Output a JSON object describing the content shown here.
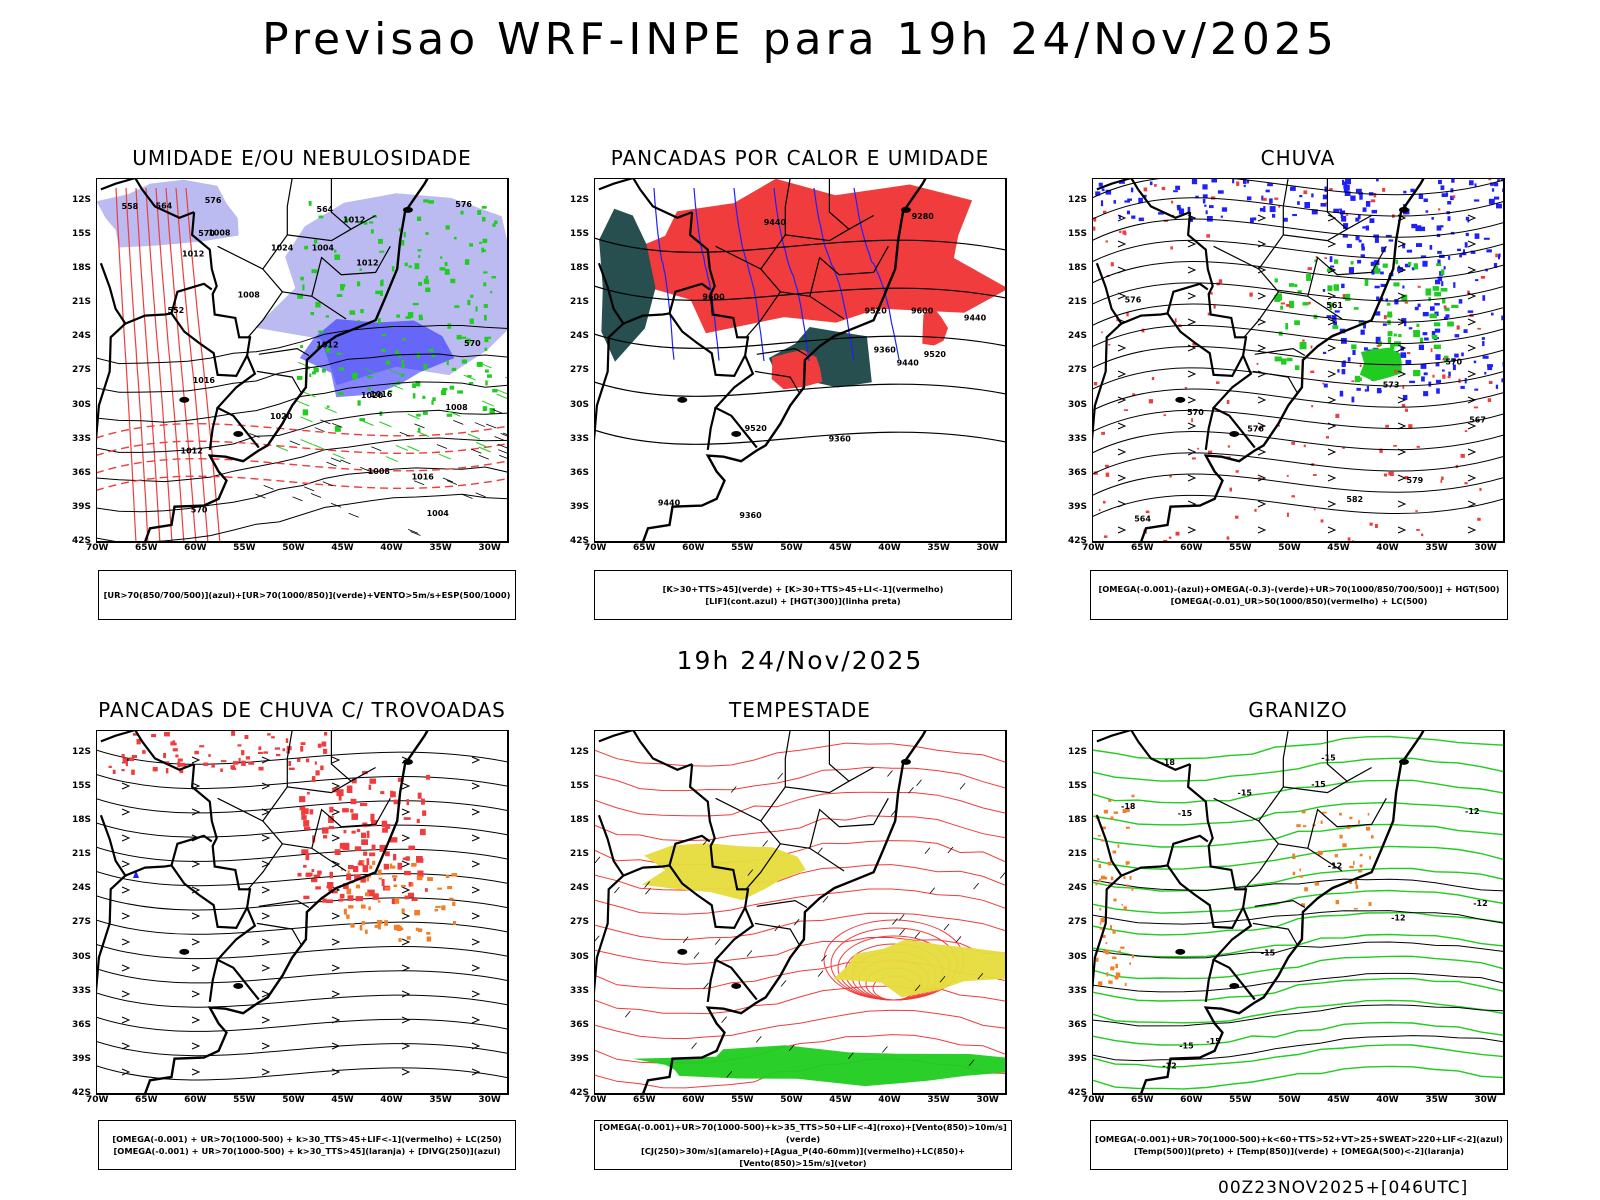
{
  "header": {
    "title": "Previsao WRF-INPE  para 19h 24/Nov/2025",
    "mid_time": "19h 24/Nov/2025",
    "run_info": "00Z23NOV2025+[046UTC]"
  },
  "axes": {
    "lat_labels": [
      "12S",
      "15S",
      "18S",
      "21S",
      "24S",
      "27S",
      "30S",
      "33S",
      "36S",
      "39S",
      "42S"
    ],
    "lon_labels": [
      "70W",
      "65W",
      "60W",
      "55W",
      "50W",
      "45W",
      "40W",
      "35W",
      "30W"
    ]
  },
  "colors": {
    "red": "#f03c3c",
    "green": "#1fcc1f",
    "blue": "#2020ff",
    "lavender": "#b4b4f0",
    "darkteal": "#284f4f",
    "orange": "#f07f28",
    "yellow": "#e6dc3c"
  },
  "panels": [
    {
      "title": "UMIDADE E/OU NEBULOSIDADE",
      "legend": [
        "[UR>70(850/700/500)](azul)+[UR>70(1000/850)](verde)+VENTO>5m/s+ESP(500/1000)"
      ],
      "contour_labels": [
        "1004",
        "1012",
        "1008",
        "1012",
        "1016",
        "1012",
        "1008",
        "1012",
        "1016",
        "1020",
        "1024",
        "1020",
        "1016",
        "1012",
        "1008",
        "1004",
        "1008",
        "576",
        "570",
        "564",
        "558",
        "552",
        "570",
        "564",
        "576",
        "570"
      ]
    },
    {
      "title": "PANCADAS POR CALOR E UMIDADE",
      "legend": [
        "[K>30+TTS>45](verde)  +  [K>30+TTS>45+LI<-1](vermelho)",
        "[LIF](cont.azul)  +  [HGT(300)](linha preta)"
      ],
      "contour_labels": [
        "9600",
        "9600",
        "9520",
        "9520",
        "9440",
        "9520",
        "9440",
        "9360",
        "9440",
        "9440",
        "9360",
        "9280",
        "9360"
      ]
    },
    {
      "title": "CHUVA",
      "legend": [
        "[OMEGA(-0.001)-(azul)+OMEGA(-0.3)-(verde)+UR>70(1000/850/700/500)]  +  HGT(500)",
        "[OMEGA(-0.01)_UR>50(1000/850)(vermelho)  +  LC(500)"
      ],
      "contour_labels": [
        "582",
        "579",
        "576",
        "573",
        "570",
        "567",
        "564",
        "561",
        "576",
        "570"
      ]
    },
    {
      "title": "PANCADAS DE CHUVA C/ TROVOADAS",
      "legend": [
        "[OMEGA(-0.001)  +  UR>70(1000-500)  +  k>30_TTS>45+LIF<-1](vermelho)  +  LC(250)",
        "[OMEGA(-0.001)  +  UR>70(1000-500)  +  k>30_TTS>45](laranja)  +  [DIVG(250)](azul)"
      ],
      "contour_labels": []
    },
    {
      "title": "TEMPESTADE",
      "legend": [
        "[OMEGA(-0.001)+UR>70(1000-500)+k>35_TTS>50+LIF<-4](roxo)+[Vento(850)>10m/s](verde)",
        "[CJ(250)>30m/s](amarelo)+[Agua_P(40-60mm)](vermelho)+LC(850)+[Vento(850)>15m/s](vetor)"
      ],
      "contour_labels": []
    },
    {
      "title": "GRANIZO",
      "legend": [
        "[OMEGA(-0.001)+UR>70(1000-500)+k<60+TTS>52+VT>25+SWEAT>220+LIF<-2](azul)",
        "[Temp(500)](preto)  +  [Temp(850)](verde)  +  [OMEGA(500)<-2](laranja)"
      ],
      "contour_labels": [
        "-12",
        "-12",
        "-15",
        "-15",
        "-15",
        "-12",
        "-12",
        "-15",
        "-15",
        "-12",
        "-15",
        "-15",
        "-18",
        "-18"
      ]
    }
  ]
}
